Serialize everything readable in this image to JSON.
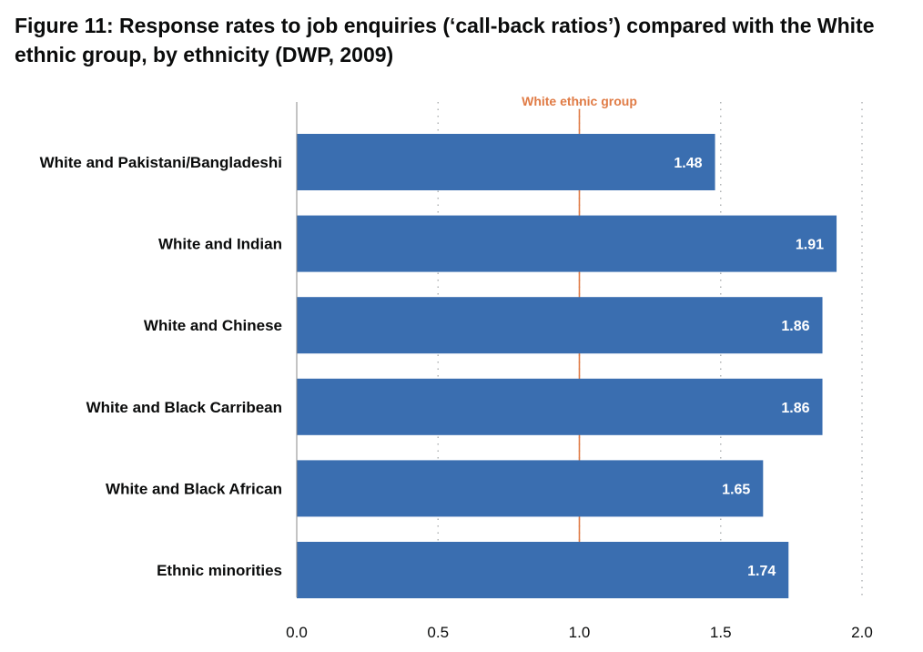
{
  "title": "Figure 11: Response rates to job enquiries (‘call-back ratios’) compared with the White ethnic group, by ethnicity (DWP, 2009)",
  "colors": {
    "bar": "#3a6eb0",
    "reference_line": "#e07b45",
    "grid": "#b1b4b6",
    "axis": "#8a8a8a",
    "text": "#0b0c0c",
    "bar_label": "#ffffff"
  },
  "chart_data": {
    "type": "bar",
    "orientation": "horizontal",
    "categories": [
      "White and Pakistani/Bangladeshi",
      "White and Indian",
      "White and Chinese",
      "White and Black Carribean",
      "White and Black African",
      "Ethnic minorities"
    ],
    "values": [
      1.48,
      1.91,
      1.86,
      1.86,
      1.65,
      1.74
    ],
    "data_labels": [
      "1.48",
      "1.91",
      "1.86",
      "1.86",
      "1.65",
      "1.74"
    ],
    "xlim": [
      0,
      2.0
    ],
    "xticks": [
      0,
      0.5,
      1.0,
      1.5,
      2.0
    ],
    "xtick_labels": [
      "0.0",
      "0.5",
      "1.0",
      "1.5",
      "2.0"
    ],
    "grid": "vertical dotted",
    "reference_line": {
      "value": 1.0,
      "label": "White ethnic group"
    },
    "legend": "none"
  }
}
